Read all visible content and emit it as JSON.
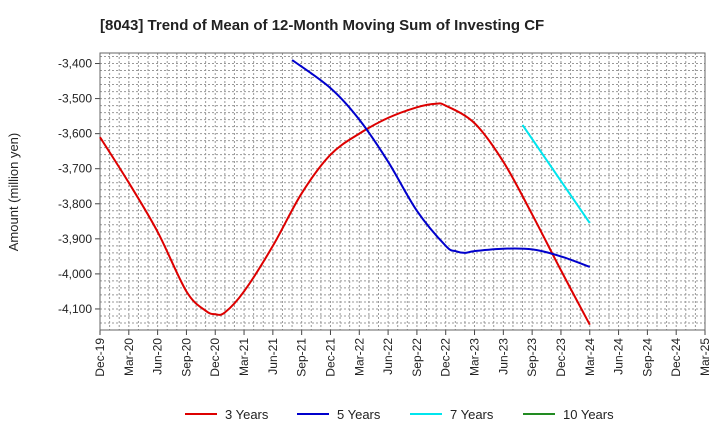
{
  "chart_data": {
    "type": "line",
    "title": "[8043]  Trend of Mean of 12-Month Moving Sum of Investing CF",
    "xlabel": "",
    "ylabel": "Amount (million yen)",
    "x_ticks": [
      "Dec-19",
      "Mar-20",
      "Jun-20",
      "Sep-20",
      "Dec-20",
      "Mar-21",
      "Jun-21",
      "Sep-21",
      "Dec-21",
      "Mar-22",
      "Jun-22",
      "Sep-22",
      "Dec-22",
      "Mar-23",
      "Jun-23",
      "Sep-23",
      "Dec-23",
      "Mar-24",
      "Jun-24",
      "Sep-24",
      "Dec-24",
      "Mar-25"
    ],
    "y_ticks": [
      -3400,
      -3500,
      -3600,
      -3700,
      -3800,
      -3900,
      -4000,
      -4100
    ],
    "ylim": [
      -4160,
      -3370
    ],
    "grid": true,
    "legend_position": "bottom",
    "series": [
      {
        "name": "3 Years",
        "color": "#dd0000",
        "points": [
          [
            "Dec-19",
            -3610
          ],
          [
            "Mar-20",
            -3740
          ],
          [
            "Jun-20",
            -3880
          ],
          [
            "Sep-20",
            -4050
          ],
          [
            "Nov-20",
            -4105
          ],
          [
            "Dec-20",
            -4115
          ],
          [
            "Jan-21",
            -4110
          ],
          [
            "Mar-21",
            -4050
          ],
          [
            "Jun-21",
            -3920
          ],
          [
            "Sep-21",
            -3770
          ],
          [
            "Dec-21",
            -3660
          ],
          [
            "Mar-22",
            -3600
          ],
          [
            "Jun-22",
            -3555
          ],
          [
            "Sep-22",
            -3525
          ],
          [
            "Nov-22",
            -3515
          ],
          [
            "Dec-22",
            -3520
          ],
          [
            "Mar-23",
            -3570
          ],
          [
            "Jun-23",
            -3680
          ],
          [
            "Sep-23",
            -3830
          ],
          [
            "Dec-23",
            -3990
          ],
          [
            "Mar-24",
            -4145
          ]
        ]
      },
      {
        "name": "5 Years",
        "color": "#0000cc",
        "points": [
          [
            "Aug-21",
            -3390
          ],
          [
            "Dec-21",
            -3470
          ],
          [
            "Mar-22",
            -3560
          ],
          [
            "Jun-22",
            -3680
          ],
          [
            "Sep-22",
            -3820
          ],
          [
            "Dec-22",
            -3920
          ],
          [
            "Jan-23",
            -3935
          ],
          [
            "Feb-23",
            -3940
          ],
          [
            "Mar-23",
            -3935
          ],
          [
            "Jun-23",
            -3928
          ],
          [
            "Sep-23",
            -3930
          ],
          [
            "Dec-23",
            -3950
          ],
          [
            "Mar-24",
            -3980
          ]
        ]
      },
      {
        "name": "7 Years",
        "color": "#00e5ee",
        "points": [
          [
            "Aug-23",
            -3575
          ],
          [
            "Mar-24",
            -3855
          ]
        ]
      },
      {
        "name": "10 Years",
        "color": "#228b22",
        "points": []
      }
    ]
  }
}
